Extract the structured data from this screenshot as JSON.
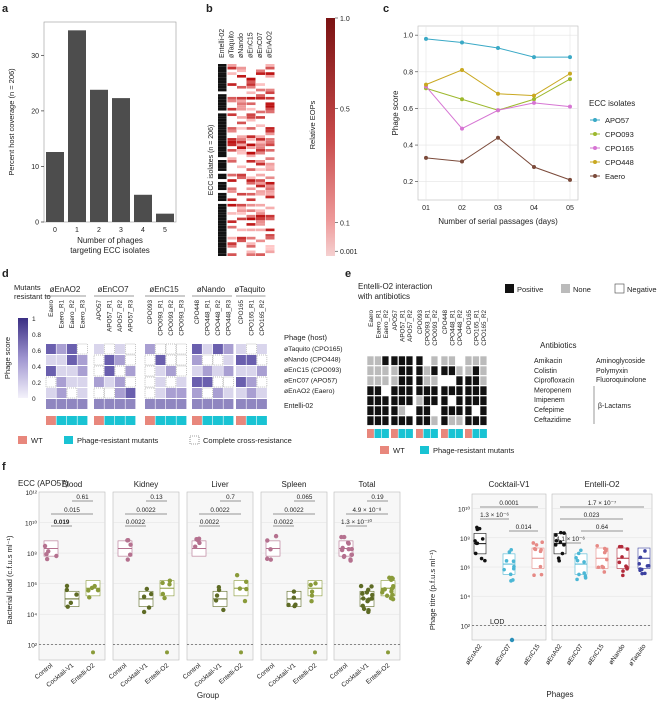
{
  "panel_labels": [
    "a",
    "b",
    "c",
    "d",
    "e",
    "f"
  ],
  "chart_data": [
    {
      "panel": "a",
      "type": "bar",
      "ylabel": "Percent host coverage (n = 206)",
      "xlabel": "Number of phages targeting ECC isolates",
      "xlabel_lines": [
        "Number of phages",
        "targeting ECC isolates"
      ],
      "categories": [
        "0",
        "1",
        "2",
        "3",
        "4",
        "5"
      ],
      "values": [
        12.6,
        34.5,
        23.8,
        22.3,
        4.9,
        1.5
      ],
      "ylim": [
        0,
        36
      ],
      "yticks": [
        "0",
        "10",
        "20",
        "30"
      ],
      "color": "#4d4d4d"
    },
    {
      "panel": "b",
      "type": "heatmap",
      "columns": [
        "Entelli-02",
        "øTaquito",
        "øNando",
        "øEnC15",
        "øEnC07",
        "øEnAO2"
      ],
      "ylabel": "ECC isolates (n = 206)",
      "colorbar_label": "Relative EOPs",
      "colorbar_ticks": [
        "1.0",
        "0.5",
        "0.1",
        "0.001"
      ]
    },
    {
      "panel": "c",
      "type": "line",
      "ylabel": "Phage score",
      "xlabel": "Number of serial passages (days)",
      "x": [
        "01",
        "02",
        "03",
        "04",
        "05"
      ],
      "ylim": [
        0.1,
        1.05
      ],
      "yticks": [
        "0.2",
        "0.4",
        "0.6",
        "0.8",
        "1.0"
      ],
      "legend_title": "ECC isolates",
      "legend_position": "right",
      "series": [
        {
          "name": "APO57",
          "color": "#3aa9c6",
          "values": [
            0.98,
            0.96,
            0.93,
            0.88,
            0.88
          ]
        },
        {
          "name": "CPO093",
          "color": "#9db82d",
          "values": [
            0.71,
            0.65,
            0.59,
            0.65,
            0.76
          ]
        },
        {
          "name": "CPO165",
          "color": "#d675d3",
          "values": [
            0.72,
            0.49,
            0.59,
            0.63,
            0.61
          ]
        },
        {
          "name": "CPO448",
          "color": "#c9a820",
          "values": [
            0.73,
            0.81,
            0.68,
            0.67,
            0.79
          ]
        },
        {
          "name": "Eaero",
          "color": "#7b4a3a",
          "values": [
            0.33,
            0.31,
            0.44,
            0.28,
            0.21
          ]
        }
      ]
    }
  ],
  "panel_d": {
    "mutants_label": [
      "Mutants",
      "resistant to"
    ],
    "groups": [
      {
        "phage": "øEnAO2",
        "cols": [
          "Eaero",
          "Eaero_R1",
          "Eaero_R2",
          "Eaero_R3"
        ]
      },
      {
        "phage": "øEnCO7",
        "cols": [
          "APO57",
          "APO57_R1",
          "APO57_R2",
          "APO57_R3"
        ]
      },
      {
        "phage": "øEnC15",
        "cols": [
          "CPO093",
          "CPO093_R1",
          "CPO093_R2",
          "CPO093_R3"
        ]
      },
      {
        "phage": "øNando",
        "cols": [
          "CPO448",
          "CPO448_R1",
          "CPO448_R2",
          "CPO448_R3"
        ]
      },
      {
        "phage": "øTaquito",
        "cols": [
          "CPO165",
          "CPO165_R1",
          "CPO165_R2"
        ]
      }
    ],
    "row_header": "Phage (host)",
    "rows": [
      "øTaquito (CPO165)",
      "øNando (CPO448)",
      "øEnC15 (CPO093)",
      "øEnC07 (APO57)",
      "øEnAO2 (Eaero)"
    ],
    "extra_row": "Entelli-02",
    "colorbar_label": "Phage score",
    "colorbar_ticks": [
      "1",
      "0.8",
      "0.6",
      "0.4",
      "0.2",
      "0"
    ],
    "legend": [
      "WT",
      "Phage-resistant mutants",
      "Complete cross-resistance"
    ]
  },
  "panel_e": {
    "title": [
      "Entelli-O2 interaction",
      "with antibiotics"
    ],
    "legend": [
      "Positive",
      "None",
      "Negative"
    ],
    "groups": [
      {
        "cols": [
          "Eaero",
          "Eaero_R1",
          "Eaero_R2"
        ]
      },
      {
        "cols": [
          "APO57",
          "APO57_R1",
          "APO57_R2"
        ]
      },
      {
        "cols": [
          "CPO093",
          "CPO093_R1",
          "CPO093_R2"
        ]
      },
      {
        "cols": [
          "CPO448",
          "CPO448_R1",
          "CPO448_R2"
        ]
      },
      {
        "cols": [
          "CPO165",
          "CPO165_R1",
          "CPO165_R2"
        ]
      }
    ],
    "antibiotics_header": "Antibiotics",
    "antibiotics": [
      "Amikacin",
      "Colistin",
      "Ciprofloxacin",
      "Meropenem",
      "Imipenem",
      "Cefepime",
      "Ceftazidime"
    ],
    "classes": [
      "Aminoglycoside",
      "Polymyxin",
      "Fluoroquinolone",
      "β-Lactams"
    ],
    "bottom_legend": [
      "WT",
      "Phage-resistant mutants"
    ]
  },
  "panel_f": {
    "title": "ECC (APO57)",
    "ylabel": "Bacterial load (c.f.u.s ml⁻¹)",
    "xlabel": "Group",
    "yticks": [
      "10²",
      "10⁴",
      "10⁶",
      "10⁸",
      "10¹⁰",
      "10¹²"
    ],
    "organs": [
      {
        "name": "Blood",
        "p": [
          "0.61",
          "0.015",
          "0.019"
        ]
      },
      {
        "name": "Kidney",
        "p": [
          "0.13",
          "0.0022",
          "0.0022"
        ]
      },
      {
        "name": "Liver",
        "p": [
          "0.7",
          "0.0022",
          "0.0022"
        ]
      },
      {
        "name": "Spleen",
        "p": [
          "0.065",
          "0.0022",
          "0.0022"
        ]
      },
      {
        "name": "Total",
        "p": [
          "0.19",
          "4.9 × 10⁻⁸",
          "1.3 × 10⁻¹⁰"
        ]
      }
    ],
    "groups": [
      "Control",
      "Cocktail-V1",
      "Entelli-O2"
    ],
    "right_ylabel": "Phage titre (p.f.u.s ml⁻¹)",
    "right_xlabel": "Phages",
    "lod": "LOD",
    "cocktail": {
      "title": "Cocktail-V1",
      "phages": [
        "øEnA02",
        "øEnC07",
        "øEnC15"
      ],
      "p": [
        "0.0001",
        "1.3 × 10⁻⁶",
        "0.014"
      ]
    },
    "entelli": {
      "title": "Entelli-O2",
      "phages": [
        "øEnA02",
        "øEnC07",
        "øEnC15",
        "øNando",
        "øTaquito"
      ],
      "p": [
        "1.7 × 10⁻⁷",
        "0.023",
        "0.64",
        "4.1 × 10⁻⁶"
      ]
    },
    "right_yticks": [
      "10²",
      "10⁴",
      "10⁶",
      "10⁸",
      "10¹⁰"
    ]
  }
}
